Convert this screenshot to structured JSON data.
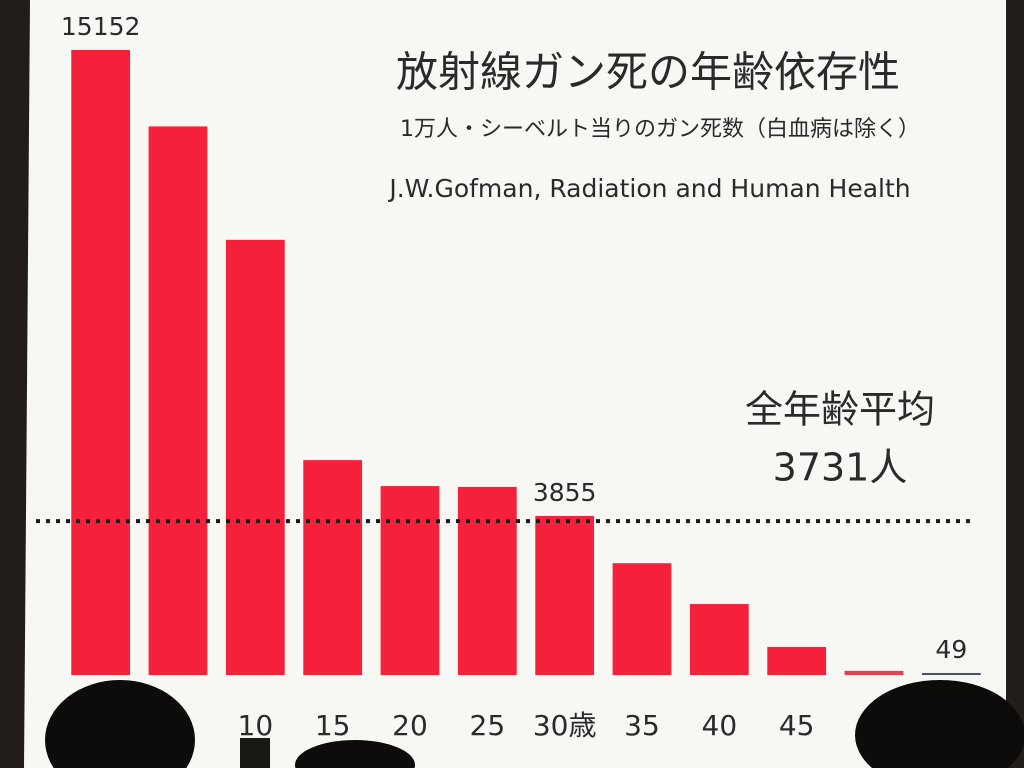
{
  "chart_data": {
    "type": "bar",
    "title": "放射線ガン死の年齢依存性",
    "subtitle": "1万人・シーベルト当りのガン死数（白血病は除く）",
    "source": "J.W.Gofman, Radiation and Human Health",
    "categories": [
      null,
      null,
      "10",
      "15",
      "20",
      "25",
      "30歳",
      "35",
      "40",
      "45",
      null,
      null
    ],
    "values": [
      15152,
      13300,
      10550,
      5210,
      4580,
      4560,
      3855,
      2710,
      1720,
      680,
      100,
      49
    ],
    "colors": [
      "#f5213b",
      "#f5213b",
      "#f5213b",
      "#f5213b",
      "#f5213b",
      "#f5213b",
      "#f5213b",
      "#f5213b",
      "#f5213b",
      "#f5213b",
      "#e0404f",
      "#4a5468"
    ],
    "show_value_label": [
      true,
      false,
      false,
      false,
      false,
      false,
      true,
      false,
      false,
      false,
      false,
      true
    ],
    "average": {
      "label": "全年齢平均",
      "value": 3731,
      "value_label": "3731人"
    },
    "grid": false
  }
}
